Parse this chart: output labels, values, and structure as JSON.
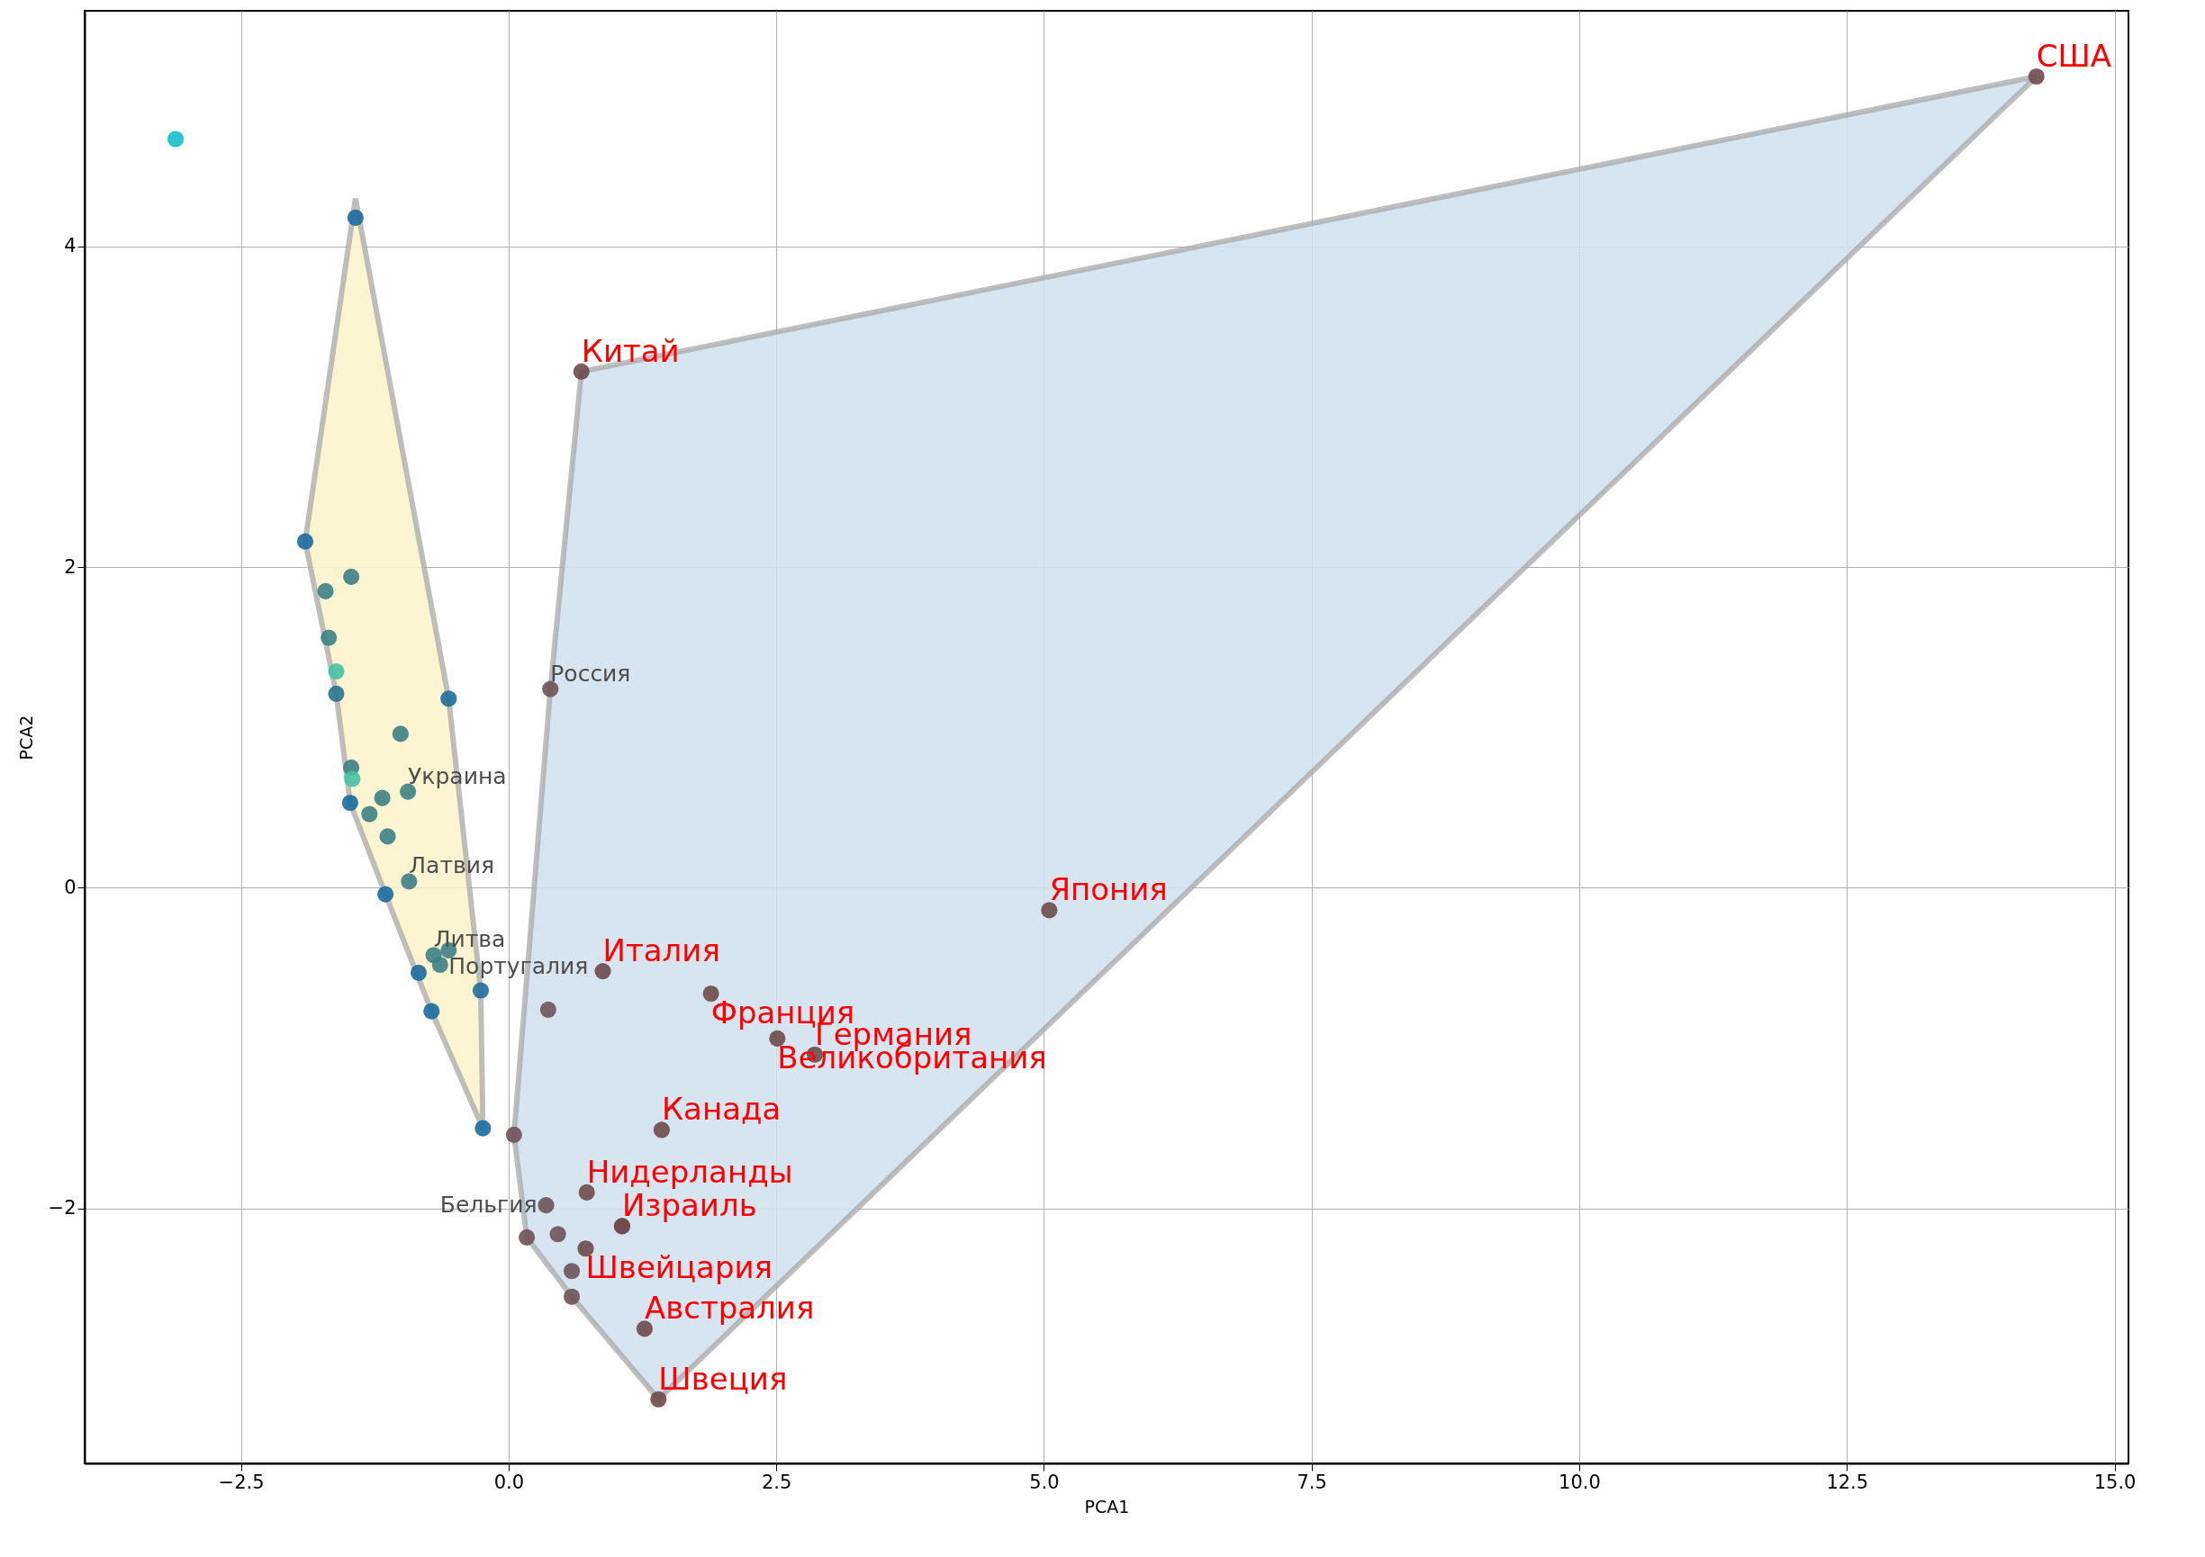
{
  "chart_data": {
    "type": "scatter",
    "xlabel": "PCA1",
    "ylabel": "PCA2",
    "xlim": [
      -3.96,
      15.13
    ],
    "ylim": [
      -3.59,
      5.47
    ],
    "xticks": [
      {
        "value": -2.5,
        "label": "−2.5"
      },
      {
        "value": 0,
        "label": "0.0"
      },
      {
        "value": 2.5,
        "label": "2.5"
      },
      {
        "value": 5,
        "label": "5.0"
      },
      {
        "value": 7.5,
        "label": "7.5"
      },
      {
        "value": 10,
        "label": "10.0"
      },
      {
        "value": 12.5,
        "label": "12.5"
      },
      {
        "value": 15,
        "label": "15.0"
      }
    ],
    "yticks": [
      {
        "value": -2,
        "label": "−2"
      },
      0,
      2,
      4
    ],
    "grid": true,
    "series": [
      {
        "type": "area",
        "color": "#fdf4cc",
        "x": [
          -1.43,
          -0.56,
          -0.26,
          -0.24,
          -0.72,
          -1.15,
          -1.48,
          -1.61,
          -1.9,
          -1.43
        ],
        "values": [
          4.3,
          1.18,
          -0.64,
          -1.5,
          -0.77,
          -0.04,
          0.53,
          1.21,
          2.16,
          4.3
        ]
      },
      {
        "type": "area",
        "color": "#d2e2ee",
        "x": [
          14.27,
          0.68,
          0.39,
          0.05,
          0.17,
          0.59,
          1.4,
          14.27
        ],
        "values": [
          5.06,
          3.22,
          1.24,
          -1.54,
          -2.18,
          -2.55,
          -3.19,
          5.06
        ]
      },
      {
        "type": "scatter",
        "marker": "circle",
        "x": [
          -1.43,
          -1.9,
          -1.71,
          -1.47,
          -1.68,
          -1.61,
          -1.61,
          -0.56,
          -1.01,
          -1.47,
          -1.46,
          -0.94,
          -1.18,
          -1.48,
          -1.3,
          -1.13,
          -0.93,
          -1.15,
          -0.7,
          -0.56,
          -0.64,
          -0.84,
          -0.26,
          -0.72,
          -0.24
        ],
        "values": [
          4.18,
          2.16,
          1.85,
          1.94,
          1.56,
          1.35,
          1.21,
          1.18,
          0.96,
          0.75,
          0.68,
          0.6,
          0.56,
          0.53,
          0.46,
          0.32,
          0.04,
          -0.04,
          -0.42,
          -0.39,
          -0.48,
          -0.53,
          -0.64,
          -0.77,
          -1.5
        ],
        "colors": [
          "#1a6aa0",
          "#1a6aa0",
          "#3d7f86",
          "#3d7f86",
          "#3d7f86",
          "#45c2a0",
          "#2a7290",
          "#1f6e9c",
          "#3d7f86",
          "#3d7f86",
          "#45c2a0",
          "#3d7f86",
          "#3d7f86",
          "#1a6aa0",
          "#3d7f86",
          "#3d7f86",
          "#3d7f86",
          "#1a6aa0",
          "#3d7f86",
          "#3d7f86",
          "#3d7f86",
          "#1a6aa0",
          "#1f6e9c",
          "#1a6aa0",
          "#1a6aa0"
        ],
        "value_labels": [
          null,
          null,
          null,
          null,
          null,
          null,
          null,
          null,
          null,
          null,
          null,
          "Украина",
          null,
          null,
          null,
          null,
          "Латвия",
          null,
          "Литва",
          "Португалия",
          null,
          null,
          null,
          null,
          null
        ]
      },
      {
        "type": "scatter",
        "marker": "circle",
        "color": "#6e5258",
        "x": [
          0.39,
          0.37,
          0.05,
          0.35,
          0.17,
          0.46,
          0.59,
          0.59,
          1.06
        ],
        "values": [
          1.24,
          -0.76,
          -1.54,
          -1.98,
          -2.18,
          -2.16,
          -2.39,
          -2.55,
          -2.11
        ],
        "value_labels": [
          "Россия",
          null,
          null,
          "Бельгия",
          null,
          null,
          null,
          null,
          null
        ]
      },
      {
        "type": "scatter",
        "marker": "circle",
        "color": "#6e4a4a",
        "x": [
          14.27,
          0.68,
          5.05,
          0.88,
          1.89,
          2.51,
          2.86,
          1.43,
          0.73,
          1.06,
          0.72,
          1.27,
          1.4
        ],
        "values": [
          5.06,
          3.22,
          -0.14,
          -0.52,
          -0.66,
          -0.94,
          -1.04,
          -1.51,
          -1.9,
          -2.11,
          -2.25,
          -2.75,
          -3.19
        ],
        "value_labels": [
          "США",
          "Китай",
          "Япония",
          "Италия",
          "Франция",
          "Великобритания",
          "Германия",
          "Канада",
          "Нидерланды",
          "Израиль",
          "Швейцария",
          "Австралия",
          "Швеция"
        ]
      },
      {
        "marker": "circle",
        "color": "#17becf",
        "x": [
          -3.11
        ],
        "values": [
          4.67
        ]
      }
    ]
  }
}
